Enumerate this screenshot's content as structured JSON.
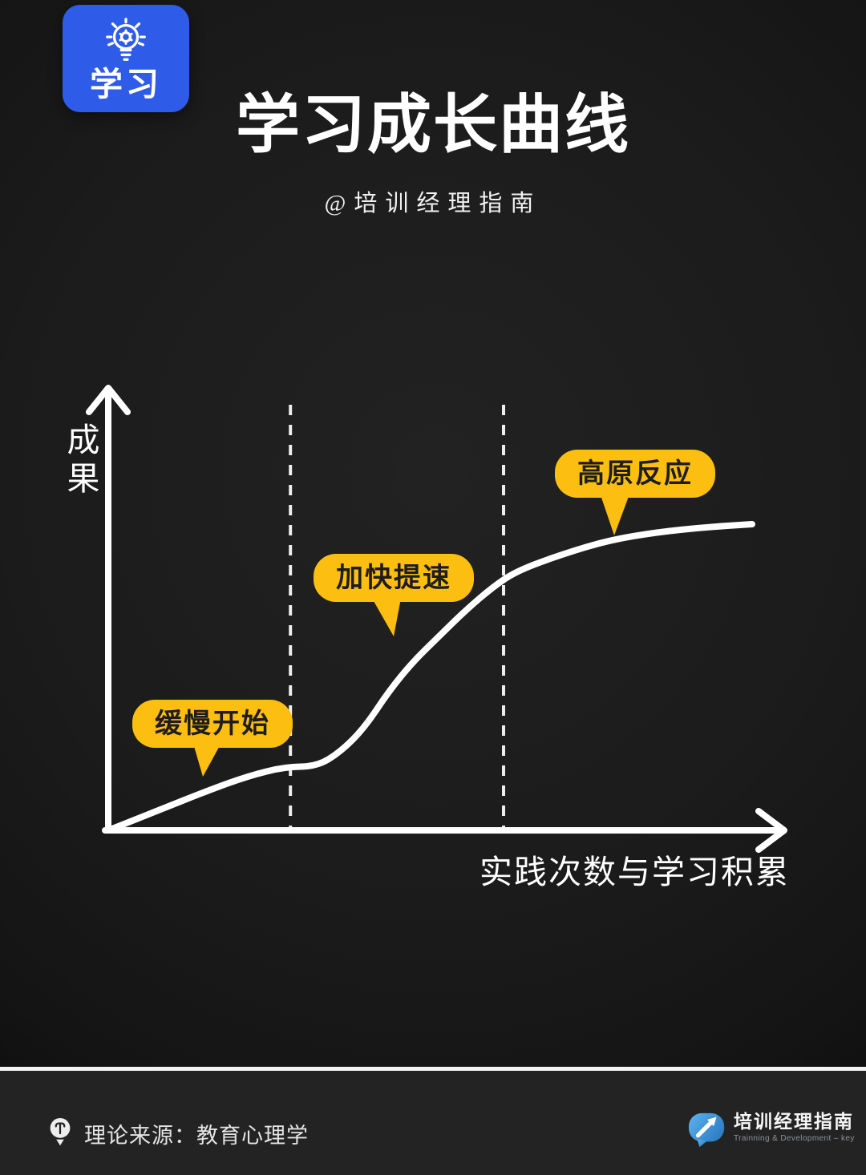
{
  "page": {
    "bg_color": "#1b1b1b",
    "footer_bg": "#232323",
    "accent_yellow": "#FCBE10",
    "badge_blue": "#2E5BE8",
    "curve_color": "#FFFFFF"
  },
  "badge": {
    "icon": "lightbulb-gear-icon",
    "label": "学习"
  },
  "header": {
    "title": "学习成长曲线",
    "subtitle": "@培训经理指南"
  },
  "chart_data": {
    "type": "line",
    "title": "学习成长曲线",
    "xlabel": "实践次数与学习积累",
    "ylabel": "成果",
    "grid": false,
    "axis_arrows": true,
    "x_range": [
      0,
      1
    ],
    "y_range": [
      0,
      1
    ],
    "x": [
      0.0,
      0.081,
      0.156,
      0.218,
      0.274,
      0.324,
      0.361,
      0.398,
      0.436,
      0.473,
      0.511,
      0.554,
      0.598,
      0.635,
      0.704,
      0.778,
      0.853,
      0.928,
      1.0
    ],
    "y": [
      0.0,
      0.068,
      0.131,
      0.178,
      0.207,
      0.209,
      0.257,
      0.335,
      0.455,
      0.55,
      0.628,
      0.717,
      0.796,
      0.848,
      0.901,
      0.948,
      0.974,
      0.99,
      1.0
    ],
    "phase_dividers_x": [
      0.283,
      0.614
    ],
    "phases": [
      {
        "label": "缓慢开始"
      },
      {
        "label": "加快提速"
      },
      {
        "label": "高原反应"
      }
    ]
  },
  "footer": {
    "source_icon": "lightbulb-icon",
    "source_text": "理论来源：教育心理学",
    "brand": {
      "logo_icon": "speech-bubble-arrow-icon",
      "name": "培训经理指南",
      "tagline": "Trainning & Development – key"
    }
  }
}
